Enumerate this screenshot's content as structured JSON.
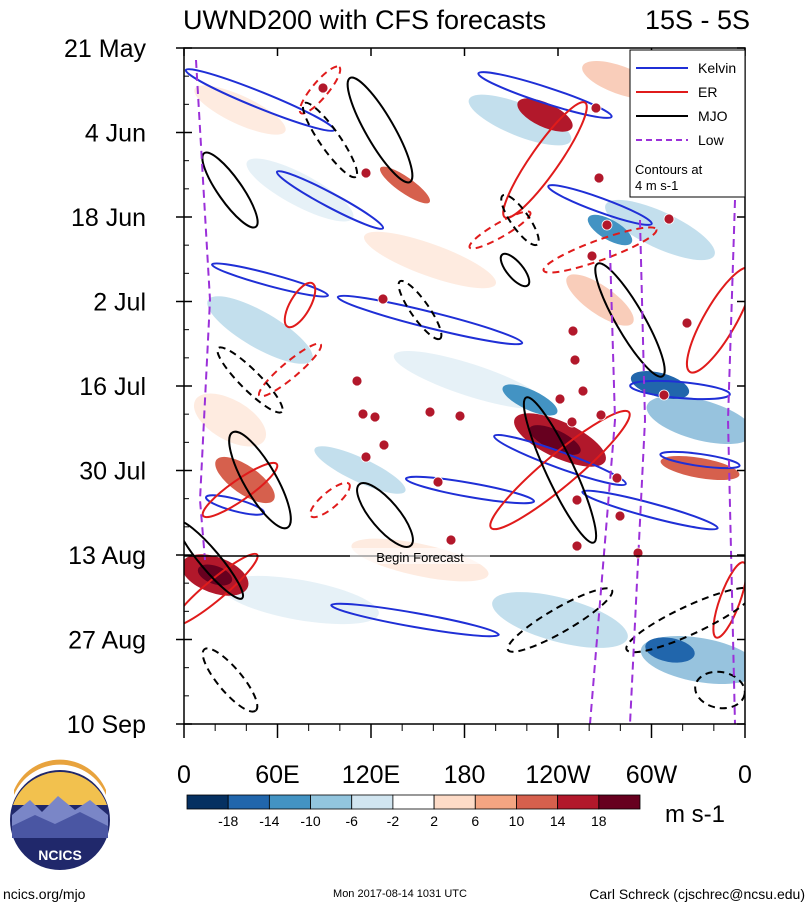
{
  "chart_data": {
    "type": "heatmap",
    "title": "UWND200 with CFS forecasts",
    "region_label": "15S - 5S",
    "x_tick_labels": [
      "0",
      "60E",
      "120E",
      "180",
      "120W",
      "60W",
      "0"
    ],
    "y_tick_labels": [
      "21 May",
      "4 Jun",
      "18 Jun",
      "2 Jul",
      "16 Jul",
      "30 Jul",
      "13 Aug",
      "27 Aug",
      "10 Sep"
    ],
    "time_range": [
      "2017-05-21",
      "2017-09-10"
    ],
    "lon_range": [
      0,
      360
    ],
    "forecast_start": "2017-08-13",
    "forecast_label": "Begin Forecast",
    "legend": [
      {
        "name": "Kelvin",
        "color": "#1f2fd6"
      },
      {
        "name": "ER",
        "color": "#e01b1b"
      },
      {
        "name": "MJO",
        "color": "#000000"
      },
      {
        "name": "Low",
        "color": "#9b30d9"
      }
    ],
    "legend_note": "Contours at\n4 m s-1",
    "colorbar": {
      "ticks": [
        "-18",
        "-14",
        "-10",
        "-6",
        "-2",
        "2",
        "6",
        "10",
        "14",
        "18"
      ],
      "colors": [
        "#053061",
        "#2166ac",
        "#4393c3",
        "#92c5de",
        "#d1e5f0",
        "#ffffff",
        "#fddbc7",
        "#f4a582",
        "#d6604d",
        "#b2182b",
        "#67001f"
      ],
      "units": "m s-1"
    }
  },
  "footer": {
    "left": "ncics.org/mjo",
    "center": "Mon 2017-08-14 1031 UTC",
    "right": "Carl Schreck (cjschrec@ncsu.edu)"
  },
  "logo": {
    "text": "NCICS"
  }
}
